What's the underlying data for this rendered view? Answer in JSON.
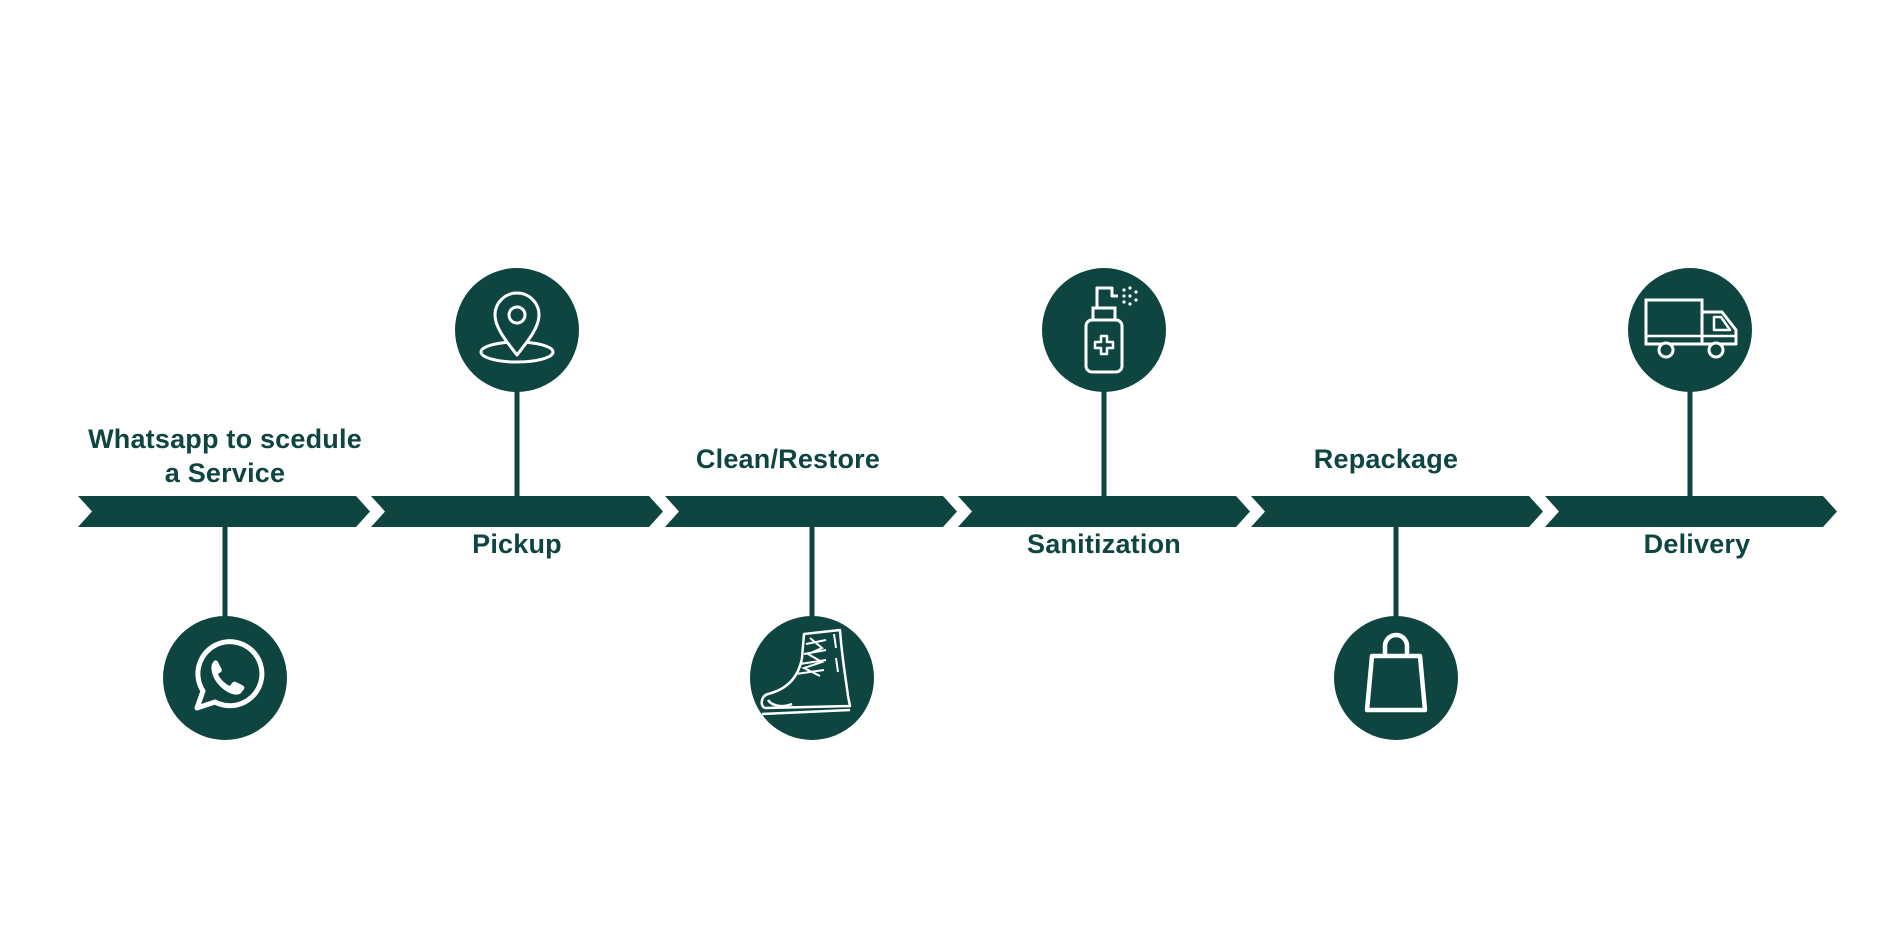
{
  "colors": {
    "primary": "#0e4540",
    "icon_stroke": "#ffffff",
    "background": "#ffffff"
  },
  "steps": [
    {
      "label": "Whatsapp to scedule\na Service",
      "icon": "whatsapp-icon",
      "label_side": "above",
      "icon_side": "below"
    },
    {
      "label": "Pickup",
      "icon": "location-pin-icon",
      "label_side": "below",
      "icon_side": "above"
    },
    {
      "label": "Clean/Restore",
      "icon": "boot-icon",
      "label_side": "above",
      "icon_side": "below"
    },
    {
      "label": "Sanitization",
      "icon": "sanitizer-spray-icon",
      "label_side": "below",
      "icon_side": "above"
    },
    {
      "label": "Repackage",
      "icon": "shopping-bag-icon",
      "label_side": "above",
      "icon_side": "below"
    },
    {
      "label": "Delivery",
      "icon": "delivery-truck-icon",
      "label_side": "below",
      "icon_side": "above"
    }
  ]
}
